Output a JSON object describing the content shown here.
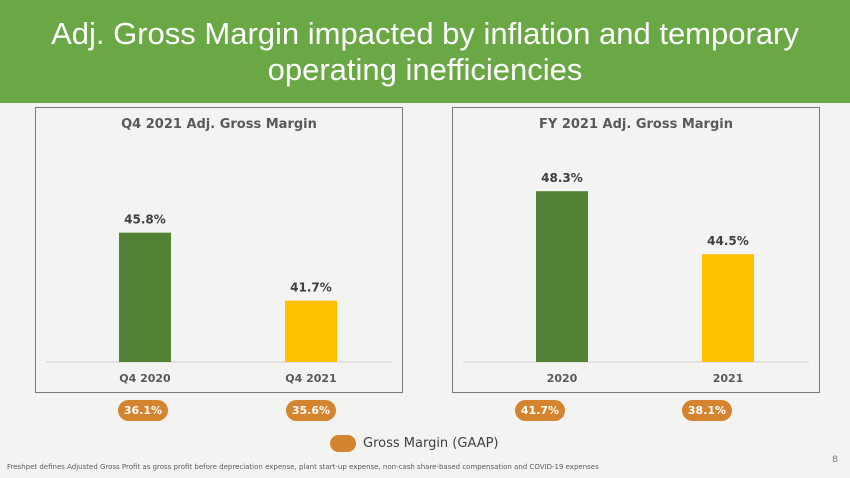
{
  "header": {
    "title": "Adj. Gross Margin impacted by inflation and temporary operating inefficiencies"
  },
  "chart_data": [
    {
      "type": "bar",
      "title": "Q4 2021 Adj. Gross Margin",
      "categories": [
        "Q4 2020",
        "Q4 2021"
      ],
      "values": [
        45.8,
        41.7
      ],
      "value_labels": [
        "45.8%",
        "41.7%"
      ],
      "colors": [
        "#548235",
        "#ffc000"
      ],
      "gaap_labels": [
        "36.1%",
        "35.6%"
      ],
      "ylim": [
        38,
        50
      ]
    },
    {
      "type": "bar",
      "title": "FY 2021 Adj. Gross Margin",
      "categories": [
        "2020",
        "2021"
      ],
      "values": [
        48.3,
        44.5
      ],
      "value_labels": [
        "48.3%",
        "44.5%"
      ],
      "colors": [
        "#548235",
        "#ffc000"
      ],
      "gaap_labels": [
        "41.7%",
        "38.1%"
      ],
      "ylim": [
        38,
        50
      ]
    }
  ],
  "legend": {
    "label": "Gross Margin (GAAP)",
    "color": "#d4832f"
  },
  "footnote": "Freshpet defines Adjusted Gross Profit as gross profit before depreciation expense, plant start-up expense, non-cash share-based compensation and COVID-19 expenses",
  "page_number": "8"
}
